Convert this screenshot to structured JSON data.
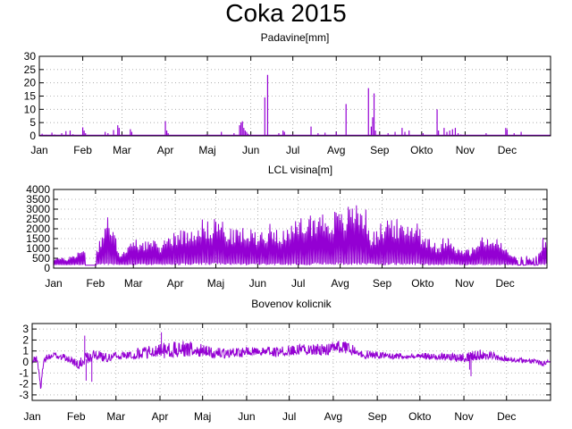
{
  "title": "Coka 2015",
  "chart_data": [
    {
      "type": "bar",
      "title": "Padavine[mm]",
      "color": "#9400d3",
      "ylim": [
        0,
        30
      ],
      "yticks": [
        0,
        5,
        10,
        15,
        20,
        25,
        30
      ],
      "x_unit": "day_of_year",
      "xlim": [
        1,
        366
      ],
      "month_ticks": [
        {
          "label": "Jan",
          "day": 1
        },
        {
          "label": "Feb",
          "day": 32
        },
        {
          "label": "Mar",
          "day": 60
        },
        {
          "label": "Apr",
          "day": 91
        },
        {
          "label": "Maj",
          "day": 121
        },
        {
          "label": "Jun",
          "day": 152
        },
        {
          "label": "Jul",
          "day": 182
        },
        {
          "label": "Avg",
          "day": 213
        },
        {
          "label": "Sep",
          "day": 244
        },
        {
          "label": "Okto",
          "day": 274
        },
        {
          "label": "Nov",
          "day": 305
        },
        {
          "label": "Dec",
          "day": 335
        }
      ],
      "grid": true,
      "points": [
        [
          3,
          0.8
        ],
        [
          6,
          0.4
        ],
        [
          10,
          1.2
        ],
        [
          12,
          0.5
        ],
        [
          17,
          1.0
        ],
        [
          20,
          1.8
        ],
        [
          23,
          2.0
        ],
        [
          25,
          0.6
        ],
        [
          32,
          3.2
        ],
        [
          33,
          2.0
        ],
        [
          34,
          1.0
        ],
        [
          48,
          1.5
        ],
        [
          50,
          1.0
        ],
        [
          54,
          2.2
        ],
        [
          57,
          4.0
        ],
        [
          58,
          3.0
        ],
        [
          66,
          2.5
        ],
        [
          67,
          1.5
        ],
        [
          91,
          5.5
        ],
        [
          92,
          2.0
        ],
        [
          93,
          1.0
        ],
        [
          120,
          0.5
        ],
        [
          131,
          1.5
        ],
        [
          140,
          1.0
        ],
        [
          144,
          4.0
        ],
        [
          145,
          5.0
        ],
        [
          146,
          5.5
        ],
        [
          147,
          3.0
        ],
        [
          148,
          2.0
        ],
        [
          149,
          1.5
        ],
        [
          150,
          0.8
        ],
        [
          162,
          14.5
        ],
        [
          164,
          23.0
        ],
        [
          172,
          1.0
        ],
        [
          175,
          2.0
        ],
        [
          176,
          1.5
        ],
        [
          195,
          3.5
        ],
        [
          200,
          1.0
        ],
        [
          205,
          1.2
        ],
        [
          213,
          1.5
        ],
        [
          220,
          12.0
        ],
        [
          236,
          18.0
        ],
        [
          238,
          3.5
        ],
        [
          239,
          7.0
        ],
        [
          240,
          16.0
        ],
        [
          241,
          2.0
        ],
        [
          250,
          1.0
        ],
        [
          255,
          1.5
        ],
        [
          260,
          3.0
        ],
        [
          262,
          1.5
        ],
        [
          265,
          2.0
        ],
        [
          275,
          1.0
        ],
        [
          285,
          10.0
        ],
        [
          286,
          2.0
        ],
        [
          290,
          3.0
        ],
        [
          292,
          1.5
        ],
        [
          294,
          2.0
        ],
        [
          296,
          2.5
        ],
        [
          298,
          3.0
        ],
        [
          300,
          1.0
        ],
        [
          302,
          0.5
        ],
        [
          320,
          1.0
        ],
        [
          334,
          3.0
        ],
        [
          335,
          2.5
        ],
        [
          340,
          1.0
        ],
        [
          345,
          1.5
        ]
      ]
    },
    {
      "type": "line",
      "title": "LCL visina[m]",
      "color": "#9400d3",
      "ylim": [
        0,
        4000
      ],
      "yticks": [
        0,
        500,
        1000,
        1500,
        2000,
        2500,
        3000,
        3500,
        4000
      ],
      "x_unit": "day_of_year",
      "xlim": [
        1,
        366
      ],
      "month_ticks": [
        {
          "label": "Jan",
          "day": 1
        },
        {
          "label": "Feb",
          "day": 32
        },
        {
          "label": "Mar",
          "day": 60
        },
        {
          "label": "Apr",
          "day": 91
        },
        {
          "label": "Maj",
          "day": 121
        },
        {
          "label": "Jun",
          "day": 152
        },
        {
          "label": "Jul",
          "day": 182
        },
        {
          "label": "Avg",
          "day": 213
        },
        {
          "label": "Sep",
          "day": 244
        },
        {
          "label": "Okto",
          "day": 274
        },
        {
          "label": "Nov",
          "day": 305
        },
        {
          "label": "Dec",
          "day": 335
        }
      ],
      "grid": true,
      "baseline": 150,
      "envelope_peak": [
        [
          1,
          600
        ],
        [
          10,
          500
        ],
        [
          15,
          700
        ],
        [
          22,
          1000
        ],
        [
          30,
          600
        ],
        [
          35,
          1500
        ],
        [
          40,
          2800
        ],
        [
          45,
          2000
        ],
        [
          50,
          900
        ],
        [
          55,
          1000
        ],
        [
          60,
          1500
        ],
        [
          70,
          1500
        ],
        [
          80,
          1300
        ],
        [
          90,
          2000
        ],
        [
          100,
          2000
        ],
        [
          105,
          2300
        ],
        [
          110,
          2600
        ],
        [
          115,
          2400
        ],
        [
          120,
          2700
        ],
        [
          125,
          2600
        ],
        [
          130,
          2000
        ],
        [
          140,
          2100
        ],
        [
          145,
          2000
        ],
        [
          150,
          2000
        ],
        [
          155,
          2000
        ],
        [
          160,
          2300
        ],
        [
          170,
          2100
        ],
        [
          175,
          2000
        ],
        [
          180,
          2400
        ],
        [
          185,
          2700
        ],
        [
          190,
          2800
        ],
        [
          195,
          2900
        ],
        [
          200,
          2900
        ],
        [
          205,
          2800
        ],
        [
          210,
          3000
        ],
        [
          215,
          2800
        ],
        [
          220,
          3300
        ],
        [
          225,
          3500
        ],
        [
          230,
          3400
        ],
        [
          233,
          2800
        ],
        [
          236,
          1800
        ],
        [
          240,
          2000
        ],
        [
          245,
          2500
        ],
        [
          250,
          2800
        ],
        [
          255,
          2500
        ],
        [
          260,
          2100
        ],
        [
          265,
          2500
        ],
        [
          270,
          2600
        ],
        [
          275,
          1700
        ],
        [
          280,
          1800
        ],
        [
          285,
          1000
        ],
        [
          290,
          1700
        ],
        [
          295,
          1800
        ],
        [
          300,
          1000
        ],
        [
          310,
          1000
        ],
        [
          315,
          1400
        ],
        [
          320,
          1700
        ],
        [
          325,
          1600
        ],
        [
          330,
          1500
        ],
        [
          335,
          1100
        ],
        [
          340,
          700
        ],
        [
          345,
          500
        ],
        [
          350,
          700
        ],
        [
          355,
          400
        ],
        [
          360,
          1200
        ],
        [
          366,
          1900
        ]
      ]
    },
    {
      "type": "line",
      "title": "Bovenov kolicnik",
      "color": "#9400d3",
      "ylim": [
        -3.5,
        3.5
      ],
      "yticks": [
        -3,
        -2,
        -1,
        0,
        1,
        2,
        3
      ],
      "x_unit": "day_of_year",
      "xlim": [
        1,
        366
      ],
      "month_ticks": [
        {
          "label": "Jan",
          "day": 1
        },
        {
          "label": "Feb",
          "day": 32
        },
        {
          "label": "Mar",
          "day": 60
        },
        {
          "label": "Apr",
          "day": 91
        },
        {
          "label": "Maj",
          "day": 121
        },
        {
          "label": "Jun",
          "day": 152
        },
        {
          "label": "Jul",
          "day": 182
        },
        {
          "label": "Avg",
          "day": 213
        },
        {
          "label": "Sep",
          "day": 244
        },
        {
          "label": "Okto",
          "day": 274
        },
        {
          "label": "Nov",
          "day": 305
        },
        {
          "label": "Dec",
          "day": 335
        }
      ],
      "grid": true,
      "mean_curve": [
        [
          1,
          0.0
        ],
        [
          4,
          0.3
        ],
        [
          6,
          -1.0
        ],
        [
          7,
          -2.5
        ],
        [
          9,
          0.0
        ],
        [
          12,
          0.4
        ],
        [
          15,
          0.6
        ],
        [
          20,
          0.5
        ],
        [
          25,
          0.3
        ],
        [
          30,
          0.0
        ],
        [
          33,
          -0.5
        ],
        [
          36,
          0.0
        ],
        [
          40,
          0.3
        ],
        [
          45,
          0.5
        ],
        [
          50,
          0.4
        ],
        [
          55,
          0.3
        ],
        [
          60,
          0.5
        ],
        [
          70,
          0.5
        ],
        [
          80,
          0.7
        ],
        [
          90,
          0.8
        ],
        [
          100,
          1.0
        ],
        [
          110,
          1.1
        ],
        [
          120,
          0.9
        ],
        [
          130,
          0.7
        ],
        [
          140,
          0.7
        ],
        [
          150,
          0.8
        ],
        [
          160,
          0.9
        ],
        [
          170,
          0.8
        ],
        [
          180,
          0.9
        ],
        [
          190,
          1.0
        ],
        [
          200,
          1.0
        ],
        [
          210,
          1.0
        ],
        [
          215,
          1.3
        ],
        [
          220,
          1.2
        ],
        [
          228,
          0.9
        ],
        [
          235,
          0.6
        ],
        [
          245,
          0.6
        ],
        [
          255,
          0.5
        ],
        [
          265,
          0.5
        ],
        [
          275,
          0.5
        ],
        [
          285,
          0.4
        ],
        [
          295,
          0.3
        ],
        [
          305,
          0.3
        ],
        [
          310,
          0.4
        ],
        [
          318,
          0.6
        ],
        [
          325,
          0.5
        ],
        [
          330,
          0.3
        ],
        [
          336,
          0.2
        ],
        [
          345,
          0.1
        ],
        [
          355,
          0.0
        ],
        [
          360,
          -0.2
        ],
        [
          366,
          0.1
        ]
      ],
      "noise_amplitude": [
        [
          1,
          0.3
        ],
        [
          30,
          0.5
        ],
        [
          40,
          0.7
        ],
        [
          60,
          0.4
        ],
        [
          90,
          0.9
        ],
        [
          110,
          1.0
        ],
        [
          130,
          0.6
        ],
        [
          160,
          0.5
        ],
        [
          190,
          0.6
        ],
        [
          215,
          0.8
        ],
        [
          240,
          0.5
        ],
        [
          270,
          0.3
        ],
        [
          300,
          0.5
        ],
        [
          320,
          0.6
        ],
        [
          340,
          0.25
        ],
        [
          366,
          0.3
        ]
      ],
      "spikes": [
        [
          38,
          2.4
        ],
        [
          39,
          -1.7
        ],
        [
          43,
          -1.8
        ],
        [
          92,
          2.7
        ],
        [
          309,
          -0.7
        ],
        [
          310,
          -1.3
        ]
      ]
    }
  ]
}
